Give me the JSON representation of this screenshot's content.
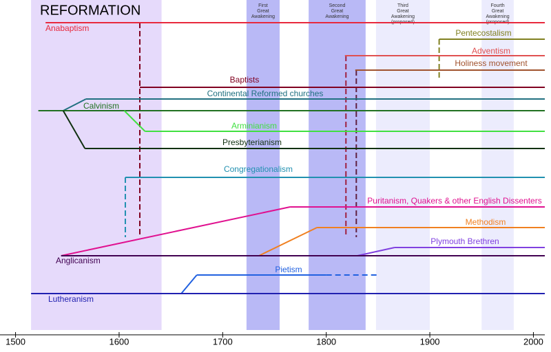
{
  "chart_data": {
    "type": "timeline",
    "xlim": [
      1485,
      2011
    ],
    "xticks": [
      1500,
      1600,
      1700,
      1800,
      1900,
      2000
    ],
    "periods": [
      {
        "name": [
          "REFORMATION"
        ],
        "start": 1515,
        "end": 1641,
        "color": "#e6dafb"
      },
      {
        "name": [
          "First",
          "Great",
          "Awakening"
        ],
        "start": 1723,
        "end": 1755,
        "color": "#b9b9f6"
      },
      {
        "name": [
          "Second",
          "Great",
          "Awakening"
        ],
        "start": 1783,
        "end": 1838,
        "color": "#b9b9f6"
      },
      {
        "name": [
          "Third",
          "Great",
          "Awakening",
          "(proposed)"
        ],
        "start": 1848,
        "end": 1900,
        "color": "#ececfd"
      },
      {
        "name": [
          "Fourth",
          "Great",
          "Awakening",
          "(proposed)"
        ],
        "start": 1950,
        "end": 1981,
        "color": "#ececfd"
      }
    ],
    "series": [
      {
        "name": "Anabaptism",
        "color": "#e8283c",
        "start": 1529
      },
      {
        "name": "Pentecostalism",
        "color": "#808020",
        "start": 1909
      },
      {
        "name": "Adventism",
        "color": "#e05050",
        "start": 1818
      },
      {
        "name": "Holiness movement",
        "color": "#a0522d",
        "start": 1828
      },
      {
        "name": "Baptists",
        "color": "#800020",
        "start": 1620
      },
      {
        "name": "Continental Reformed churches",
        "color": "#207080",
        "start": 1568,
        "branch": 1546,
        "parent": 6
      },
      {
        "name": "Calvinism",
        "color": "#207020",
        "start": 1522
      },
      {
        "name": "Arminianism",
        "color": "#40e040",
        "start": 1625,
        "branch": 1605,
        "parent": 6
      },
      {
        "name": "Presbyterianism",
        "color": "#103010",
        "start": 1567,
        "branch": 1546,
        "parent": 6
      },
      {
        "name": "Congregationalism",
        "color": "#2090b0",
        "start": 1606
      },
      {
        "name": "Puritanism, Quakers & other English Dissenters",
        "color": "#e0108f",
        "start": 1765,
        "branch": 1544,
        "parent": 13
      },
      {
        "name": "Methodism",
        "color": "#f08020",
        "start": 1791,
        "branch": 1735,
        "parent": 13
      },
      {
        "name": "Plymouth Brethren",
        "color": "#8040e0",
        "start": 1866,
        "branch": 1830,
        "parent": 13
      },
      {
        "name": "Anglicanism",
        "color": "#400050",
        "start": 1544
      },
      {
        "name": "Pietism",
        "color": "#2060e0",
        "start": 1675,
        "branch": 1660,
        "parent": 15,
        "end": 1800,
        "dashed_end": 1850
      },
      {
        "name": "Lutheranism",
        "color": "#2020b0",
        "start": 1515
      }
    ],
    "links": [
      {
        "year": 1620,
        "from": 0,
        "to": 11,
        "color": "#800020"
      },
      {
        "year": 1606,
        "from": 9,
        "to": 11,
        "color": "#2090b0"
      },
      {
        "year": 1819,
        "from": 2,
        "to": 11,
        "color": "#a02040"
      },
      {
        "year": 1829,
        "from": 3,
        "to": 11,
        "color": "#602040"
      },
      {
        "year": 1909,
        "from": 1,
        "to": 3,
        "color": "#808020"
      }
    ]
  }
}
